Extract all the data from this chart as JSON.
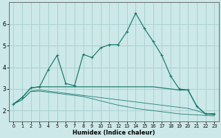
{
  "xlabel": "Humidex (Indice chaleur)",
  "background_color": "#cce8e8",
  "grid_color": "#aad0d0",
  "line_color": "#1a7a6e",
  "x_values": [
    0,
    1,
    2,
    3,
    4,
    5,
    6,
    7,
    8,
    9,
    10,
    11,
    12,
    13,
    14,
    15,
    16,
    17,
    18,
    19,
    20,
    21,
    22,
    23
  ],
  "line1": [
    2.3,
    2.6,
    3.05,
    3.1,
    3.9,
    4.55,
    3.25,
    3.15,
    4.6,
    4.45,
    4.9,
    5.05,
    5.05,
    5.65,
    6.5,
    5.8,
    5.2,
    4.55,
    3.6,
    3.0,
    2.95,
    2.2,
    1.85,
    1.85
  ],
  "line2": [
    2.3,
    2.6,
    3.05,
    3.1,
    3.1,
    3.1,
    3.1,
    3.1,
    3.1,
    3.1,
    3.1,
    3.1,
    3.1,
    3.1,
    3.1,
    3.1,
    3.1,
    3.05,
    3.0,
    2.95,
    2.95,
    2.2,
    1.85,
    1.85
  ],
  "line3": [
    2.3,
    2.5,
    2.9,
    2.95,
    2.9,
    2.85,
    2.8,
    2.75,
    2.7,
    2.65,
    2.6,
    2.55,
    2.5,
    2.45,
    2.4,
    2.35,
    2.3,
    2.25,
    2.2,
    2.15,
    2.1,
    2.0,
    1.85,
    1.8
  ],
  "line4": [
    2.3,
    2.5,
    2.88,
    2.9,
    2.85,
    2.8,
    2.75,
    2.7,
    2.65,
    2.55,
    2.45,
    2.35,
    2.25,
    2.18,
    2.1,
    2.05,
    2.0,
    1.95,
    1.9,
    1.85,
    1.82,
    1.8,
    1.78,
    1.75
  ],
  "ylim": [
    1.5,
    7.0
  ],
  "yticks": [
    2,
    3,
    4,
    5,
    6
  ],
  "xlim": [
    -0.5,
    23.5
  ]
}
